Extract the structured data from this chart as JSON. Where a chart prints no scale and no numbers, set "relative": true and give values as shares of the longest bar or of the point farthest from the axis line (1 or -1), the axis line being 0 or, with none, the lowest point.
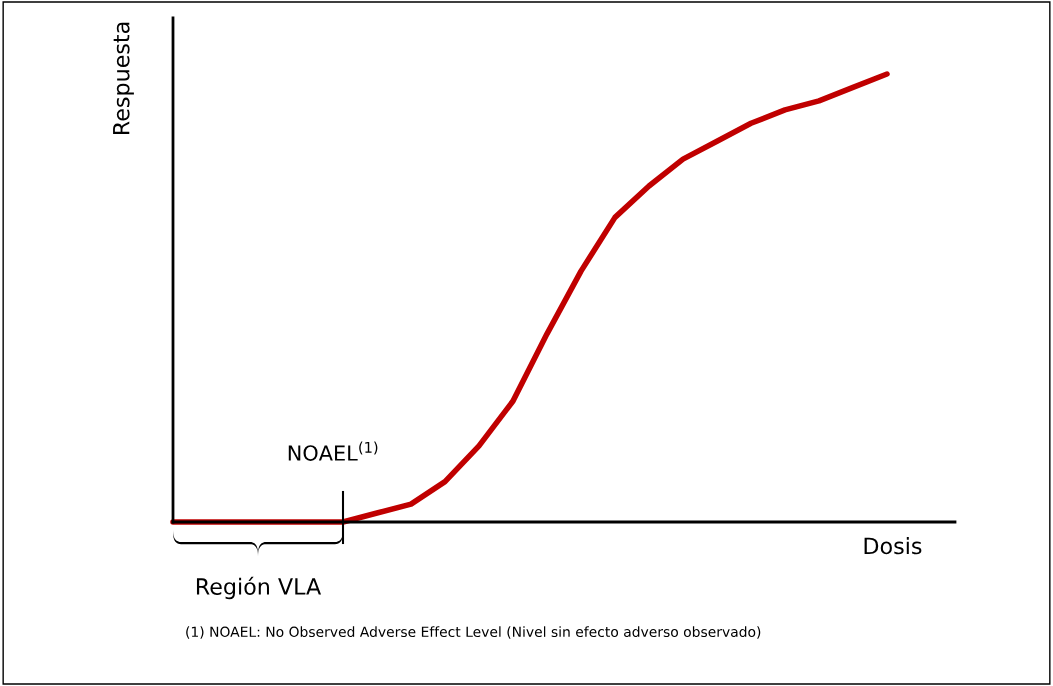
{
  "chart_data": {
    "type": "line",
    "relative": true,
    "xlabel": "Dosis",
    "ylabel": "Respuesta",
    "categories": [
      null,
      null,
      null,
      null,
      null,
      null,
      null,
      null,
      null,
      null,
      null,
      null,
      null,
      null,
      null,
      null,
      null,
      null,
      null,
      null,
      null,
      null,
      null,
      null
    ],
    "series": [
      {
        "color": "#c00000",
        "values": [
          0,
          0,
          0,
          0,
          0,
          0,
          0.02,
          0.04,
          0.09,
          0.17,
          0.27,
          0.42,
          0.56,
          0.68,
          0.75,
          0.81,
          0.85,
          0.89,
          0.92,
          0.94,
          0.97,
          1,
          null,
          null
        ]
      }
    ],
    "annotations": [
      "NOAEL$^{(1)}$",
      "Región VLA",
      "(1) NOAEL: No Observed Adverse Effect Level (Nivel sin efecto adverso observado)"
    ],
    "grid": false,
    "legend": false,
    "marker": "none",
    "line_style": "solid"
  }
}
